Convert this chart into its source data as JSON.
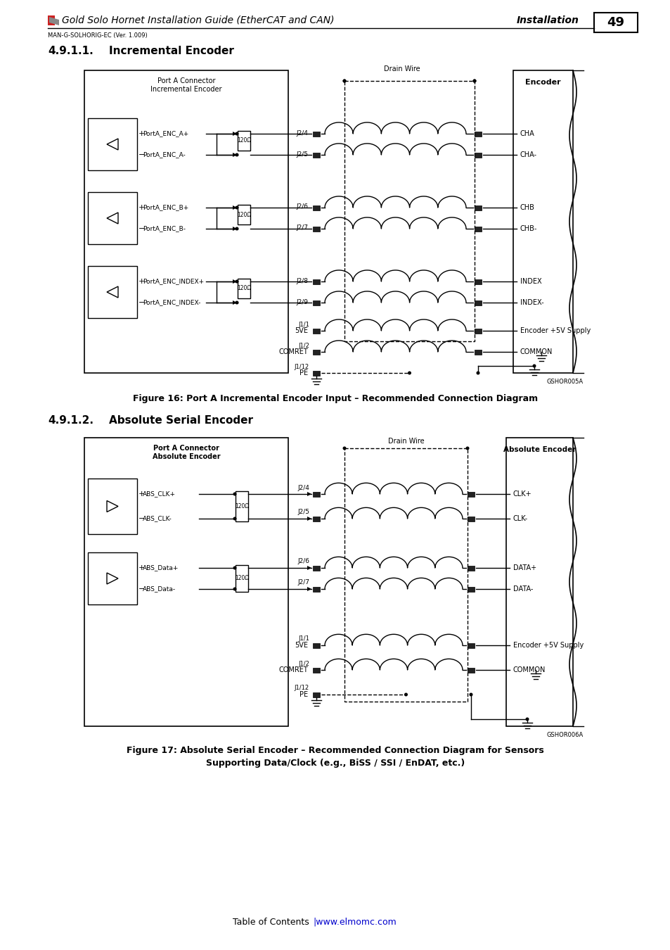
{
  "page_title": "Gold Solo Hornet Installation Guide (EtherCAT and CAN)",
  "page_title_right": "Installation",
  "page_number": "49",
  "subtitle_small": "MAN-G-SOLHORIG-EC (Ver. 1.009)",
  "fig1_caption": "Figure 16: Port A Incremental Encoder Input – Recommended Connection Diagram",
  "fig2_caption_line1": "Figure 17: Absolute Serial Encoder – Recommended Connection Diagram for Sensors",
  "fig2_caption_line2": "Supporting Data/Clock (e.g., BiSS / SSI / EnDAT, etc.)",
  "footer_left": "Table of Contents",
  "footer_right": "|www.elmomc.com",
  "background": "#ffffff",
  "link_color": "#0000cc"
}
